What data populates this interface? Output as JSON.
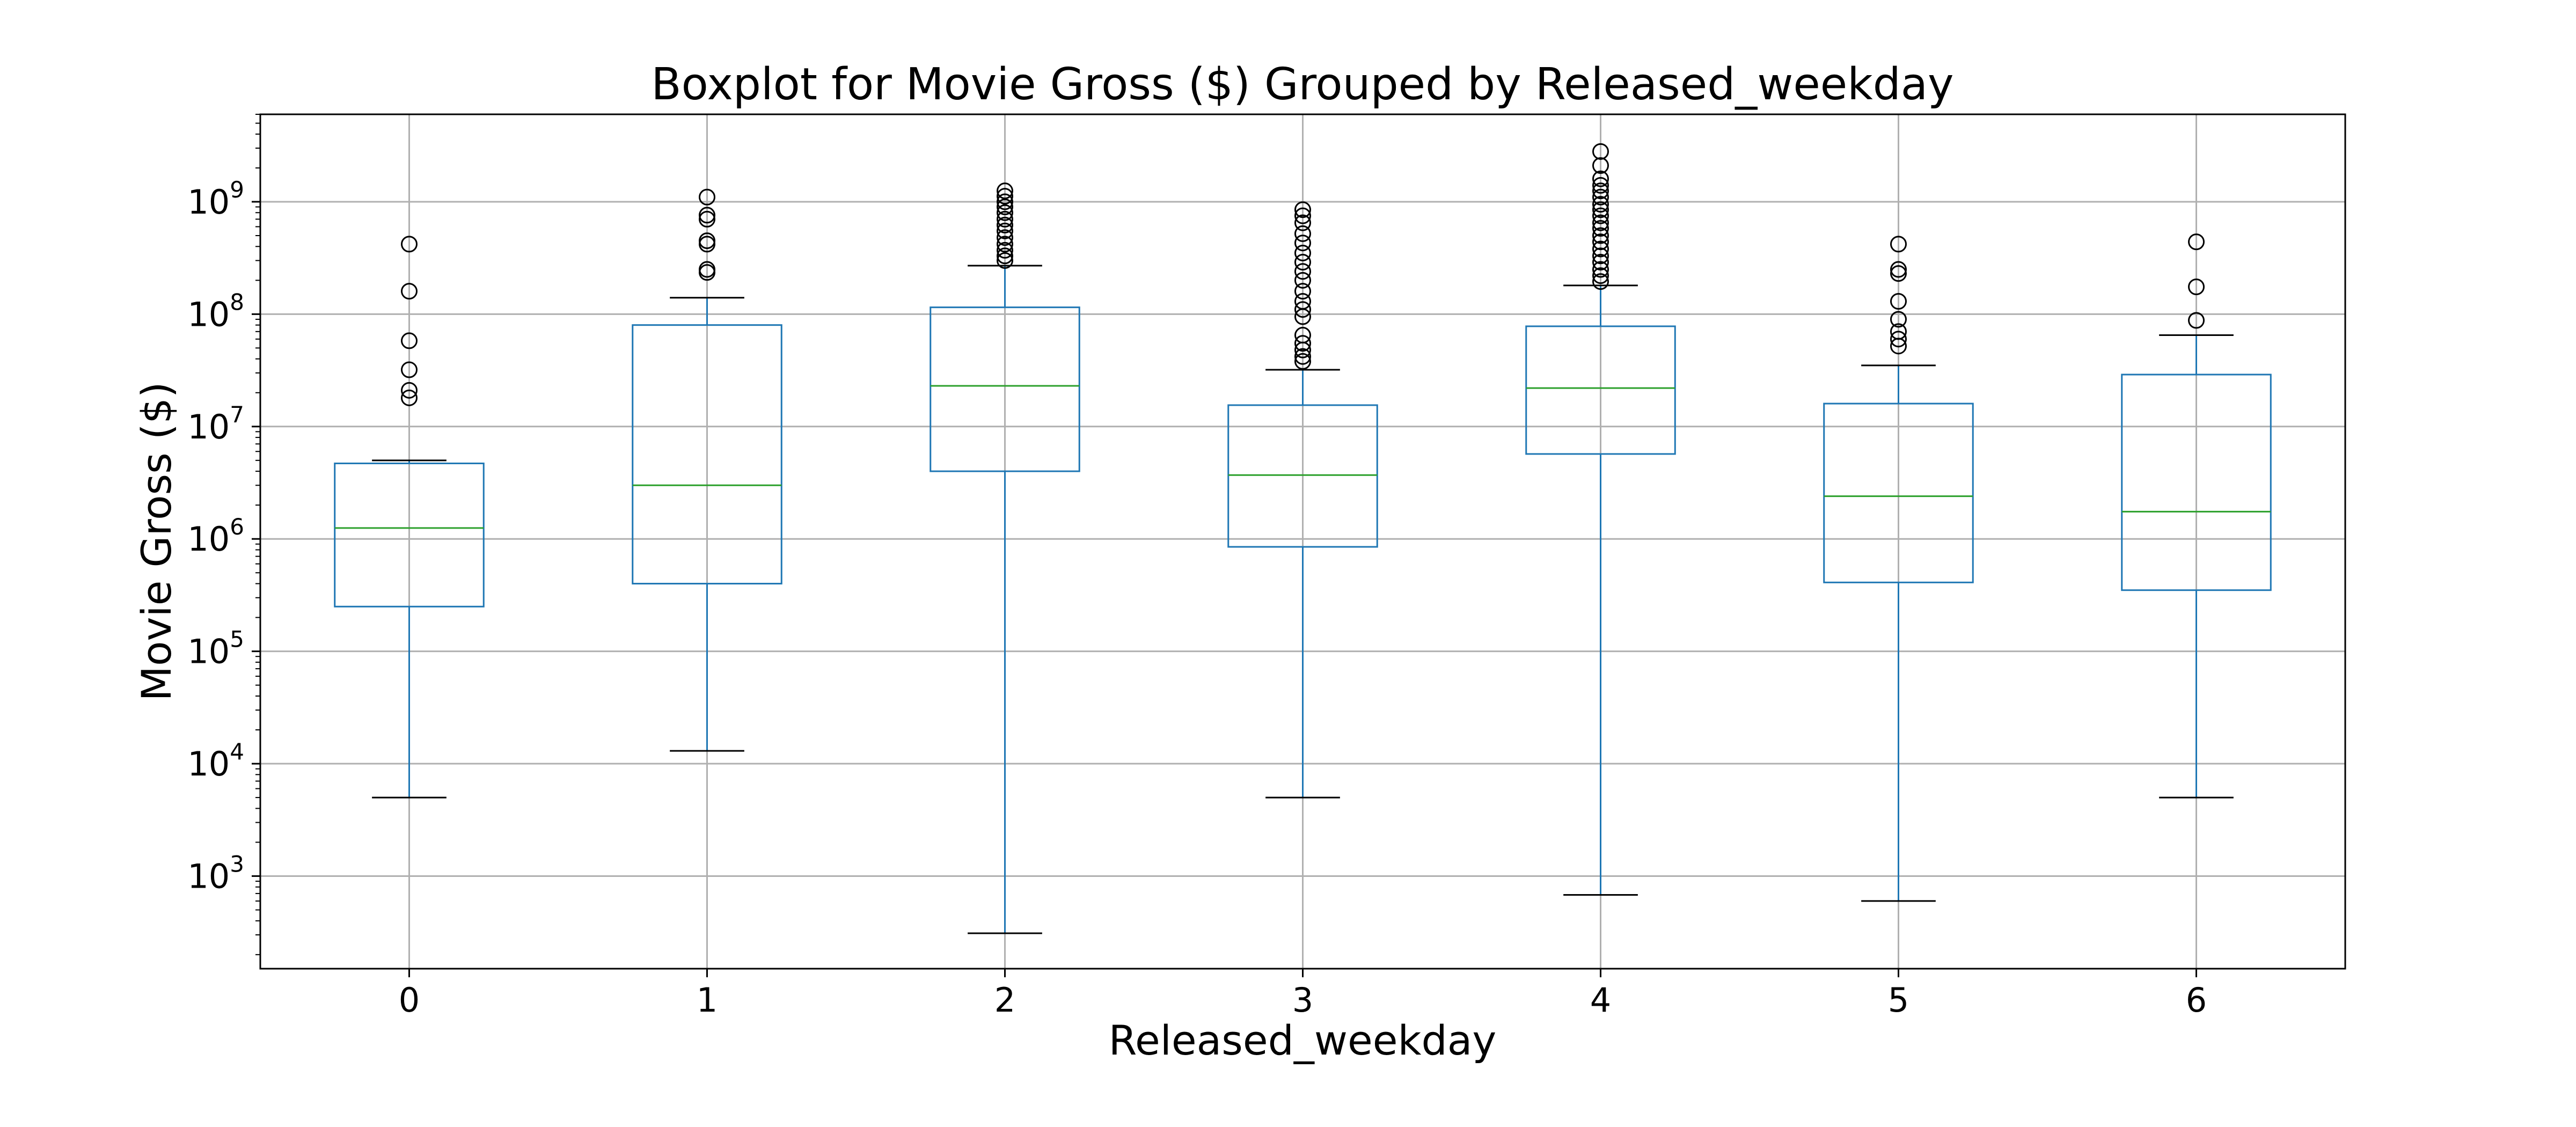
{
  "chart_data": {
    "type": "boxplot",
    "title": "Boxplot for Movie Gross ($) Grouped by Released_weekday",
    "xlabel": "Released_weekday",
    "ylabel": "Movie Gross ($)",
    "yscale": "log",
    "ylim": [
      150,
      6000000000
    ],
    "grid": true,
    "x_ticks": [
      "0",
      "1",
      "2",
      "3",
      "4",
      "5",
      "6"
    ],
    "y_ticks": [
      {
        "value": 1000,
        "base": "10",
        "exp": "3"
      },
      {
        "value": 10000,
        "base": "10",
        "exp": "4"
      },
      {
        "value": 100000,
        "base": "10",
        "exp": "5"
      },
      {
        "value": 1000000,
        "base": "10",
        "exp": "6"
      },
      {
        "value": 10000000,
        "base": "10",
        "exp": "7"
      },
      {
        "value": 100000000,
        "base": "10",
        "exp": "8"
      },
      {
        "value": 1000000000,
        "base": "10",
        "exp": "9"
      }
    ],
    "colors": {
      "box": "#1f77b4",
      "median": "#2ca02c",
      "cap": "#000000",
      "grid": "#b0b0b0"
    },
    "groups": [
      {
        "label": "0",
        "whisker_low": 5000,
        "q1": 250000,
        "median": 1250000,
        "q3": 4700000,
        "whisker_high": 5000000,
        "outliers": [
          420000000,
          160000000,
          58000000,
          32000000,
          21000000,
          18000000
        ]
      },
      {
        "label": "1",
        "whisker_low": 13000,
        "q1": 400000,
        "median": 3000000,
        "q3": 80000000,
        "whisker_high": 140000000,
        "outliers": [
          1100000000,
          760000000,
          700000000,
          450000000,
          420000000,
          250000000,
          235000000
        ]
      },
      {
        "label": "2",
        "whisker_low": 310,
        "q1": 4000000,
        "median": 23000000,
        "q3": 115000000,
        "whisker_high": 270000000,
        "outliers": [
          1250000000,
          1120000000,
          1000000000,
          900000000,
          800000000,
          700000000,
          620000000,
          550000000,
          480000000,
          420000000,
          370000000,
          330000000,
          300000000
        ]
      },
      {
        "label": "3",
        "whisker_low": 5000,
        "q1": 850000,
        "median": 3700000,
        "q3": 15500000,
        "whisker_high": 32000000,
        "outliers": [
          850000000,
          750000000,
          650000000,
          520000000,
          430000000,
          350000000,
          290000000,
          240000000,
          200000000,
          160000000,
          130000000,
          110000000,
          95000000,
          65000000,
          55000000,
          48000000,
          42000000,
          38000000
        ]
      },
      {
        "label": "4",
        "whisker_low": 680,
        "q1": 5700000,
        "median": 22000000,
        "q3": 78000000,
        "whisker_high": 180000000,
        "outliers": [
          2800000000,
          2100000000,
          1600000000,
          1400000000,
          1250000000,
          1100000000,
          950000000,
          850000000,
          750000000,
          650000000,
          580000000,
          500000000,
          440000000,
          380000000,
          330000000,
          290000000,
          250000000,
          220000000,
          195000000
        ]
      },
      {
        "label": "5",
        "whisker_low": 600,
        "q1": 410000,
        "median": 2400000,
        "q3": 16000000,
        "whisker_high": 35000000,
        "outliers": [
          420000000,
          250000000,
          230000000,
          130000000,
          90000000,
          70000000,
          60000000,
          52000000
        ]
      },
      {
        "label": "6",
        "whisker_low": 5000,
        "q1": 350000,
        "median": 1750000,
        "q3": 29000000,
        "whisker_high": 65000000,
        "outliers": [
          440000000,
          175000000,
          88000000
        ]
      }
    ]
  }
}
